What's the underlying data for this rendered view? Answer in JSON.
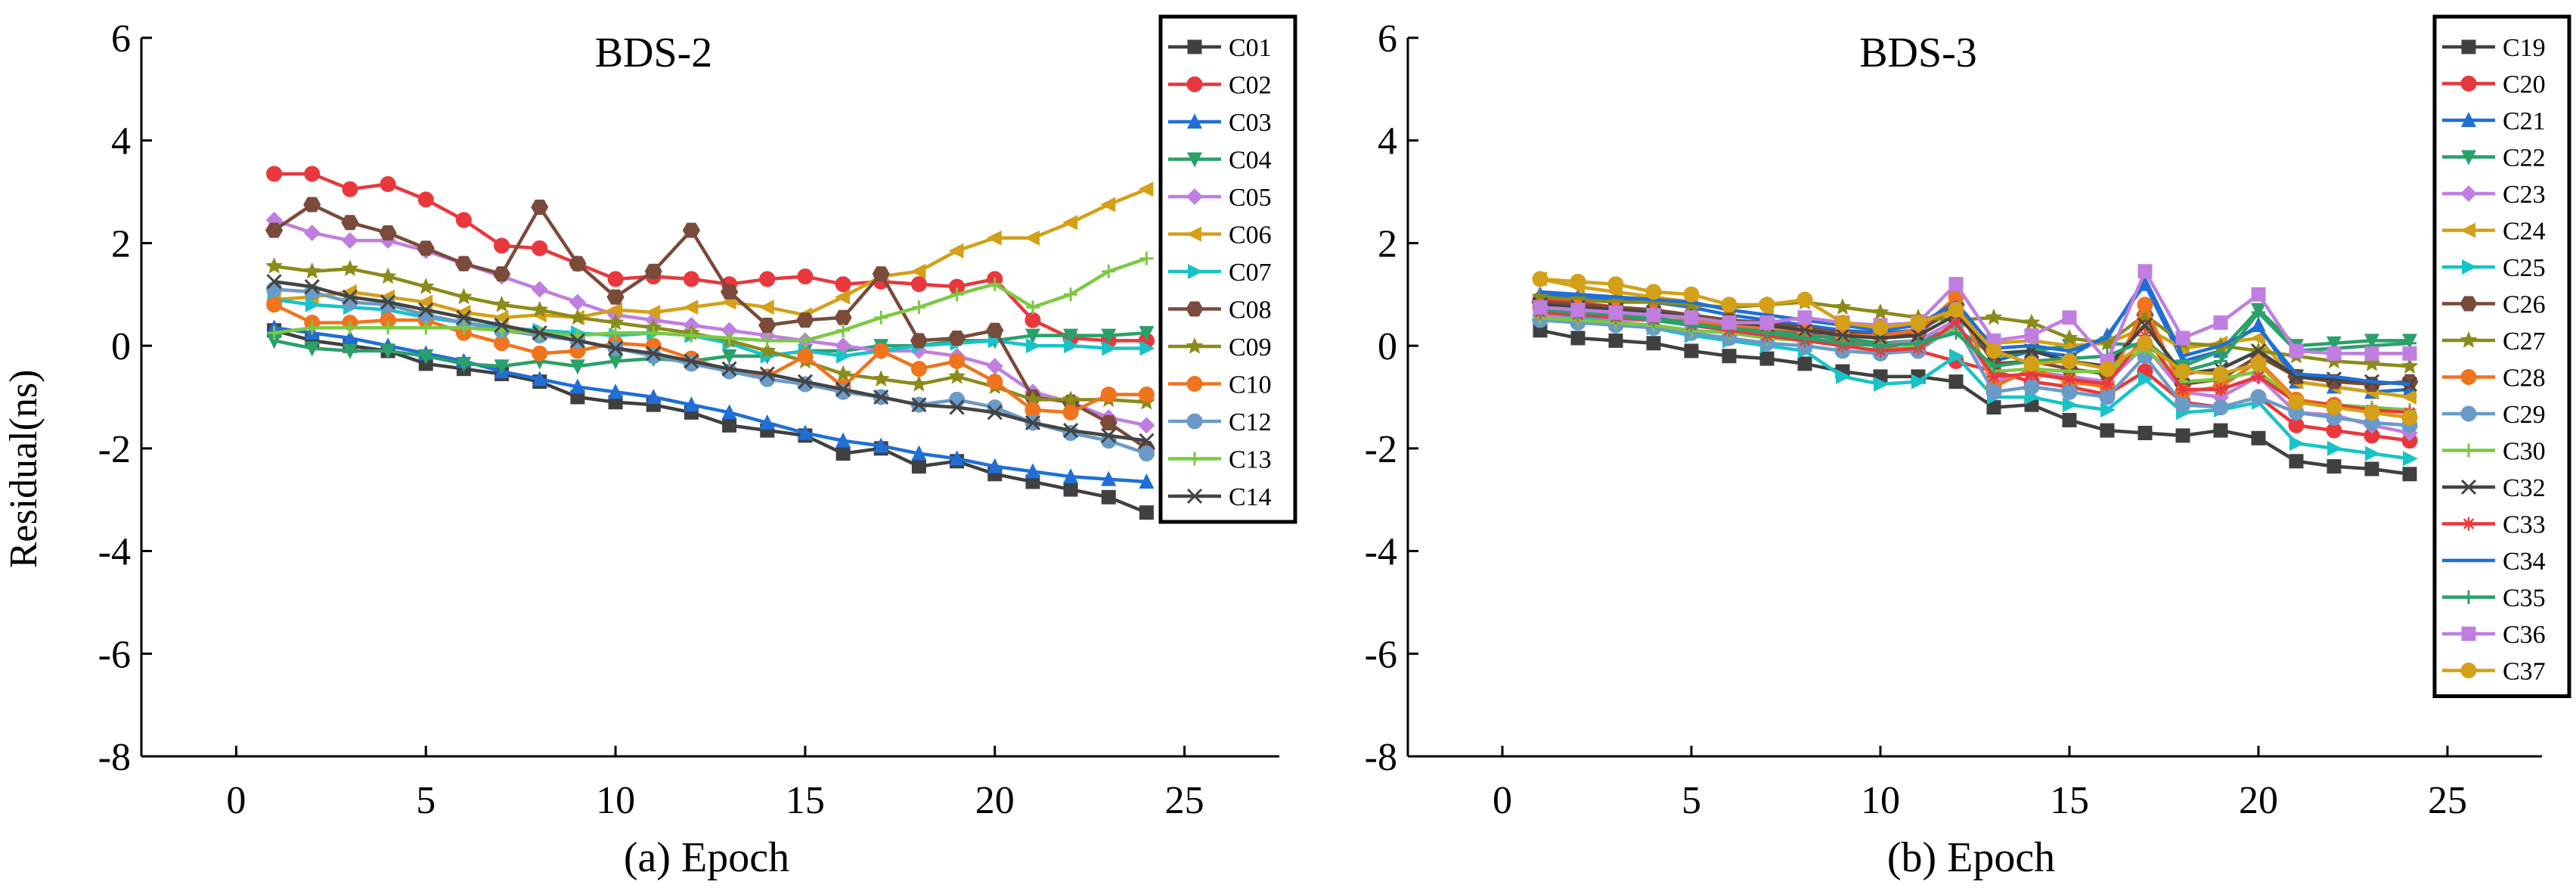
{
  "figure": {
    "ylabel": "Residual(ns)"
  },
  "chart_data": [
    {
      "type": "line",
      "title": "BDS-2",
      "xlabel": "(a) Epoch",
      "ylabel": "Residual(ns)",
      "xlim": [
        -2.5,
        27.5
      ],
      "ylim": [
        -8,
        6
      ],
      "xticks": [
        "0",
        "5",
        "10",
        "15",
        "20",
        "25"
      ],
      "yticks": [
        "-8",
        "-6",
        "-4",
        "-2",
        "0",
        "2",
        "4",
        "6"
      ],
      "legend_position": "top-right",
      "x": [
        1,
        2,
        3,
        4,
        5,
        6,
        7,
        8,
        9,
        10,
        11,
        12,
        13,
        14,
        15,
        16,
        17,
        18,
        19,
        20,
        21,
        22,
        23,
        24
      ],
      "series": [
        {
          "name": "C01",
          "color": "#404040",
          "marker": "square",
          "values": [
            0.3,
            0.1,
            0.0,
            -0.1,
            -0.35,
            -0.45,
            -0.55,
            -0.7,
            -1.0,
            -1.1,
            -1.15,
            -1.3,
            -1.55,
            -1.65,
            -1.75,
            -2.1,
            -2.0,
            -2.35,
            -2.25,
            -2.5,
            -2.65,
            -2.8,
            -2.95,
            -3.25
          ]
        },
        {
          "name": "C02",
          "color": "#e8383d",
          "marker": "circle",
          "values": [
            3.35,
            3.35,
            3.05,
            3.15,
            2.85,
            2.45,
            1.95,
            1.9,
            1.6,
            1.3,
            1.35,
            1.3,
            1.2,
            1.3,
            1.35,
            1.2,
            1.25,
            1.2,
            1.15,
            1.3,
            0.5,
            0.15,
            0.1,
            0.1
          ]
        },
        {
          "name": "C03",
          "color": "#1f6fd6",
          "marker": "triangle-up",
          "values": [
            0.35,
            0.25,
            0.15,
            0.0,
            -0.15,
            -0.3,
            -0.5,
            -0.65,
            -0.8,
            -0.9,
            -1.0,
            -1.15,
            -1.3,
            -1.5,
            -1.7,
            -1.85,
            -1.95,
            -2.1,
            -2.2,
            -2.35,
            -2.45,
            -2.55,
            -2.6,
            -2.65
          ]
        },
        {
          "name": "C04",
          "color": "#2aa06a",
          "marker": "triangle-down",
          "values": [
            0.1,
            -0.05,
            -0.1,
            -0.1,
            -0.2,
            -0.35,
            -0.4,
            -0.3,
            -0.4,
            -0.3,
            -0.25,
            -0.3,
            -0.2,
            -0.2,
            -0.1,
            -0.1,
            0.0,
            0.0,
            0.1,
            0.1,
            0.2,
            0.2,
            0.2,
            0.25
          ]
        },
        {
          "name": "C05",
          "color": "#c07ee0",
          "marker": "diamond",
          "values": [
            2.45,
            2.2,
            2.05,
            2.05,
            1.85,
            1.6,
            1.35,
            1.1,
            0.85,
            0.6,
            0.5,
            0.4,
            0.3,
            0.2,
            0.1,
            0.0,
            -0.1,
            -0.1,
            -0.2,
            -0.4,
            -0.9,
            -1.1,
            -1.4,
            -1.55
          ]
        },
        {
          "name": "C06",
          "color": "#d4a017",
          "marker": "triangle-left",
          "values": [
            0.9,
            0.95,
            1.05,
            0.95,
            0.85,
            0.65,
            0.55,
            0.6,
            0.55,
            0.7,
            0.65,
            0.75,
            0.85,
            0.75,
            0.6,
            0.95,
            1.35,
            1.45,
            1.85,
            2.1,
            2.1,
            2.4,
            2.75,
            3.05
          ]
        },
        {
          "name": "C07",
          "color": "#18c3c8",
          "marker": "triangle-right",
          "values": [
            0.9,
            0.8,
            0.75,
            0.7,
            0.55,
            0.45,
            0.35,
            0.3,
            0.25,
            0.2,
            0.25,
            0.2,
            0.05,
            -0.2,
            -0.1,
            -0.2,
            -0.1,
            0.0,
            0.05,
            0.1,
            0.0,
            0.0,
            -0.05,
            -0.05
          ]
        },
        {
          "name": "C08",
          "color": "#7a4a3a",
          "marker": "hexagon",
          "values": [
            2.25,
            2.75,
            2.4,
            2.2,
            1.9,
            1.6,
            1.4,
            2.7,
            1.6,
            0.95,
            1.45,
            2.25,
            1.05,
            0.4,
            0.5,
            0.55,
            1.4,
            0.1,
            0.15,
            0.3,
            -1.0,
            -1.1,
            -1.5,
            -2.0
          ]
        },
        {
          "name": "C09",
          "color": "#8b8b1a",
          "marker": "star",
          "values": [
            1.55,
            1.45,
            1.5,
            1.35,
            1.15,
            0.95,
            0.8,
            0.7,
            0.55,
            0.45,
            0.35,
            0.25,
            0.1,
            -0.1,
            -0.3,
            -0.55,
            -0.65,
            -0.75,
            -0.6,
            -0.8,
            -1.05,
            -1.05,
            -1.05,
            -1.1
          ]
        },
        {
          "name": "C10",
          "color": "#f0731e",
          "marker": "circle",
          "values": [
            0.8,
            0.45,
            0.45,
            0.5,
            0.5,
            0.25,
            0.05,
            -0.15,
            -0.1,
            0.05,
            0.0,
            -0.25,
            -0.5,
            -0.6,
            -0.2,
            -0.8,
            -0.1,
            -0.45,
            -0.3,
            -0.7,
            -1.25,
            -1.3,
            -0.95,
            -0.95
          ]
        },
        {
          "name": "C12",
          "color": "#6a9ac8",
          "marker": "circle",
          "values": [
            1.1,
            1.05,
            0.85,
            0.8,
            0.6,
            0.45,
            0.3,
            0.2,
            0.1,
            -0.05,
            -0.2,
            -0.35,
            -0.5,
            -0.65,
            -0.75,
            -0.9,
            -1.0,
            -1.15,
            -1.05,
            -1.2,
            -1.5,
            -1.7,
            -1.85,
            -2.1
          ]
        },
        {
          "name": "C13",
          "color": "#7ac943",
          "marker": "plus",
          "values": [
            0.25,
            0.35,
            0.35,
            0.35,
            0.35,
            0.35,
            0.3,
            0.25,
            0.2,
            0.25,
            0.25,
            0.2,
            0.15,
            0.1,
            0.1,
            0.3,
            0.55,
            0.75,
            1.0,
            1.2,
            0.75,
            1.0,
            1.45,
            1.7
          ]
        },
        {
          "name": "C14",
          "color": "#444444",
          "marker": "x",
          "values": [
            1.25,
            1.15,
            0.95,
            0.85,
            0.7,
            0.55,
            0.4,
            0.25,
            0.1,
            -0.05,
            -0.15,
            -0.3,
            -0.45,
            -0.55,
            -0.7,
            -0.85,
            -1.0,
            -1.15,
            -1.2,
            -1.3,
            -1.5,
            -1.65,
            -1.75,
            -1.85
          ]
        }
      ]
    },
    {
      "type": "line",
      "title": "BDS-3",
      "xlabel": "(b) Epoch",
      "ylabel": "Residual(ns)",
      "xlim": [
        -2.5,
        27.5
      ],
      "ylim": [
        -8,
        6
      ],
      "xticks": [
        "0",
        "5",
        "10",
        "15",
        "20",
        "25"
      ],
      "yticks": [
        "-8",
        "-6",
        "-4",
        "-2",
        "0",
        "2",
        "4",
        "6"
      ],
      "legend_position": "top-right",
      "x": [
        1,
        2,
        3,
        4,
        5,
        6,
        7,
        8,
        9,
        10,
        11,
        12,
        13,
        14,
        15,
        16,
        17,
        18,
        19,
        20,
        21,
        22,
        23,
        24
      ],
      "series": [
        {
          "name": "C19",
          "color": "#404040",
          "marker": "square",
          "values": [
            0.3,
            0.15,
            0.1,
            0.05,
            -0.1,
            -0.2,
            -0.25,
            -0.35,
            -0.5,
            -0.6,
            -0.6,
            -0.7,
            -1.2,
            -1.15,
            -1.45,
            -1.65,
            -1.7,
            -1.75,
            -1.65,
            -1.8,
            -2.25,
            -2.35,
            -2.4,
            -2.5
          ]
        },
        {
          "name": "C20",
          "color": "#e8383d",
          "marker": "circle",
          "values": [
            0.9,
            0.85,
            0.75,
            0.65,
            0.55,
            0.45,
            0.35,
            0.25,
            0.1,
            0.0,
            -0.1,
            -0.3,
            -0.5,
            -0.7,
            -0.8,
            -0.95,
            -0.5,
            -1.1,
            -1.2,
            -1.0,
            -1.55,
            -1.65,
            -1.75,
            -1.85
          ]
        },
        {
          "name": "C21",
          "color": "#1f6fd6",
          "marker": "triangle-up",
          "values": [
            1.0,
            0.95,
            0.9,
            0.85,
            0.75,
            0.6,
            0.5,
            0.4,
            0.3,
            0.25,
            0.3,
            0.7,
            -0.3,
            -0.1,
            -0.2,
            0.2,
            1.2,
            -0.3,
            -0.1,
            0.4,
            -0.7,
            -0.8,
            -0.9,
            -0.85
          ]
        },
        {
          "name": "C22",
          "color": "#2aa06a",
          "marker": "triangle-down",
          "values": [
            0.75,
            0.7,
            0.6,
            0.55,
            0.45,
            0.4,
            0.3,
            0.2,
            0.15,
            0.05,
            0.1,
            0.35,
            -0.2,
            -0.1,
            0.0,
            0.05,
            0.0,
            -0.4,
            -0.1,
            0.7,
            0.0,
            0.05,
            0.1,
            0.1
          ]
        },
        {
          "name": "C23",
          "color": "#c07ee0",
          "marker": "diamond",
          "values": [
            0.6,
            0.55,
            0.5,
            0.5,
            0.4,
            0.3,
            0.2,
            0.15,
            0.05,
            0.0,
            0.1,
            0.5,
            -0.7,
            -0.5,
            -0.6,
            -0.7,
            0.0,
            -0.9,
            -1.0,
            -0.6,
            -1.3,
            -1.35,
            -1.55,
            -1.7
          ]
        },
        {
          "name": "C24",
          "color": "#d4a017",
          "marker": "triangle-left",
          "values": [
            1.3,
            1.15,
            1.05,
            0.95,
            0.85,
            0.7,
            0.6,
            0.5,
            0.4,
            0.35,
            0.4,
            0.65,
            0.05,
            0.1,
            0.0,
            0.05,
            0.35,
            -0.05,
            0.05,
            0.15,
            -0.7,
            -0.8,
            -0.9,
            -1.0
          ]
        },
        {
          "name": "C25",
          "color": "#18c3c8",
          "marker": "triangle-right",
          "values": [
            0.7,
            0.55,
            0.45,
            0.35,
            0.2,
            0.1,
            0.0,
            -0.1,
            -0.6,
            -0.75,
            -0.7,
            -0.2,
            -1.0,
            -1.0,
            -1.15,
            -1.25,
            -0.65,
            -1.3,
            -1.25,
            -1.1,
            -1.9,
            -2.0,
            -2.1,
            -2.2
          ]
        },
        {
          "name": "C26",
          "color": "#7a4a3a",
          "marker": "hexagon",
          "values": [
            0.85,
            0.8,
            0.75,
            0.7,
            0.6,
            0.5,
            0.45,
            0.35,
            0.25,
            0.2,
            0.25,
            0.8,
            -0.35,
            -0.3,
            -0.45,
            -0.55,
            0.6,
            -0.75,
            -0.65,
            -0.2,
            -0.6,
            -0.7,
            -0.75,
            -0.7
          ]
        },
        {
          "name": "C27",
          "color": "#8b8b1a",
          "marker": "star",
          "values": [
            0.95,
            0.9,
            0.85,
            0.85,
            0.8,
            0.75,
            0.8,
            0.85,
            0.75,
            0.65,
            0.55,
            0.5,
            0.55,
            0.45,
            0.15,
            0.05,
            0.6,
            0.05,
            0.0,
            -0.1,
            -0.2,
            -0.3,
            -0.35,
            -0.4
          ]
        },
        {
          "name": "C28",
          "color": "#f0731e",
          "marker": "circle",
          "values": [
            0.75,
            0.75,
            0.7,
            0.65,
            0.5,
            0.4,
            0.35,
            0.3,
            0.2,
            0.2,
            0.3,
            0.95,
            -0.8,
            -0.45,
            -0.7,
            -0.8,
            0.8,
            -0.9,
            -0.8,
            -0.3,
            -1.05,
            -1.15,
            -1.3,
            -1.4
          ]
        },
        {
          "name": "C29",
          "color": "#6a9ac8",
          "marker": "circle",
          "values": [
            0.5,
            0.45,
            0.4,
            0.35,
            0.25,
            0.15,
            0.05,
            0.0,
            -0.1,
            -0.15,
            -0.1,
            0.4,
            -0.9,
            -0.8,
            -0.9,
            -1.0,
            -0.2,
            -1.15,
            -1.2,
            -1.0,
            -1.3,
            -1.4,
            -1.5,
            -1.55
          ]
        },
        {
          "name": "C30",
          "color": "#7ac943",
          "marker": "plus",
          "values": [
            0.55,
            0.5,
            0.45,
            0.4,
            0.3,
            0.25,
            0.15,
            0.1,
            0.0,
            -0.1,
            0.0,
            0.3,
            -0.5,
            -0.45,
            -0.5,
            -0.5,
            -0.05,
            -0.7,
            -0.65,
            -0.5,
            -1.1,
            -1.15,
            -1.2,
            -1.25
          ]
        },
        {
          "name": "C32",
          "color": "#444444",
          "marker": "x",
          "values": [
            0.8,
            0.75,
            0.7,
            0.65,
            0.55,
            0.45,
            0.4,
            0.3,
            0.2,
            0.15,
            0.2,
            0.6,
            -0.15,
            -0.1,
            -0.3,
            -0.4,
            0.4,
            -0.55,
            -0.45,
            -0.1,
            -0.6,
            -0.65,
            -0.7,
            -0.75
          ]
        },
        {
          "name": "C33",
          "color": "#e8383d",
          "marker": "asterisk",
          "values": [
            0.65,
            0.6,
            0.55,
            0.5,
            0.4,
            0.3,
            0.2,
            0.1,
            0.0,
            -0.1,
            -0.05,
            0.45,
            -0.6,
            -0.55,
            -0.65,
            -0.75,
            0.2,
            -0.85,
            -0.85,
            -0.6,
            -1.1,
            -1.15,
            -1.25,
            -1.3
          ]
        },
        {
          "name": "C34",
          "color": "#1f6fd6",
          "marker": "none",
          "values": [
            1.05,
            1.0,
            0.95,
            0.9,
            0.85,
            0.7,
            0.6,
            0.5,
            0.4,
            0.3,
            0.4,
            0.85,
            -0.05,
            0.0,
            -0.1,
            0.15,
            1.3,
            -0.2,
            0.0,
            0.35,
            -0.55,
            -0.6,
            -0.7,
            -0.75
          ]
        },
        {
          "name": "C35",
          "color": "#2aa06a",
          "marker": "plus",
          "values": [
            0.7,
            0.65,
            0.6,
            0.5,
            0.4,
            0.35,
            0.25,
            0.15,
            0.05,
            0.0,
            0.05,
            0.25,
            -0.4,
            -0.3,
            -0.25,
            -0.2,
            0.1,
            -0.5,
            -0.3,
            0.65,
            -0.1,
            -0.05,
            0.0,
            0.05
          ]
        },
        {
          "name": "C36",
          "color": "#c07ee0",
          "marker": "square",
          "values": [
            0.75,
            0.7,
            0.65,
            0.6,
            0.55,
            0.45,
            0.45,
            0.55,
            0.45,
            0.4,
            0.45,
            1.2,
            0.1,
            0.2,
            0.55,
            -0.3,
            1.45,
            0.15,
            0.45,
            1.0,
            -0.1,
            -0.15,
            -0.15,
            -0.15
          ]
        },
        {
          "name": "C37",
          "color": "#d4a017",
          "marker": "circle",
          "values": [
            1.3,
            1.25,
            1.2,
            1.05,
            1.0,
            0.8,
            0.8,
            0.9,
            0.45,
            0.35,
            0.45,
            0.7,
            -0.1,
            -0.35,
            -0.3,
            -0.45,
            0.05,
            -0.5,
            -0.55,
            -0.35,
            -1.1,
            -1.2,
            -1.3,
            -1.4
          ]
        }
      ]
    }
  ]
}
